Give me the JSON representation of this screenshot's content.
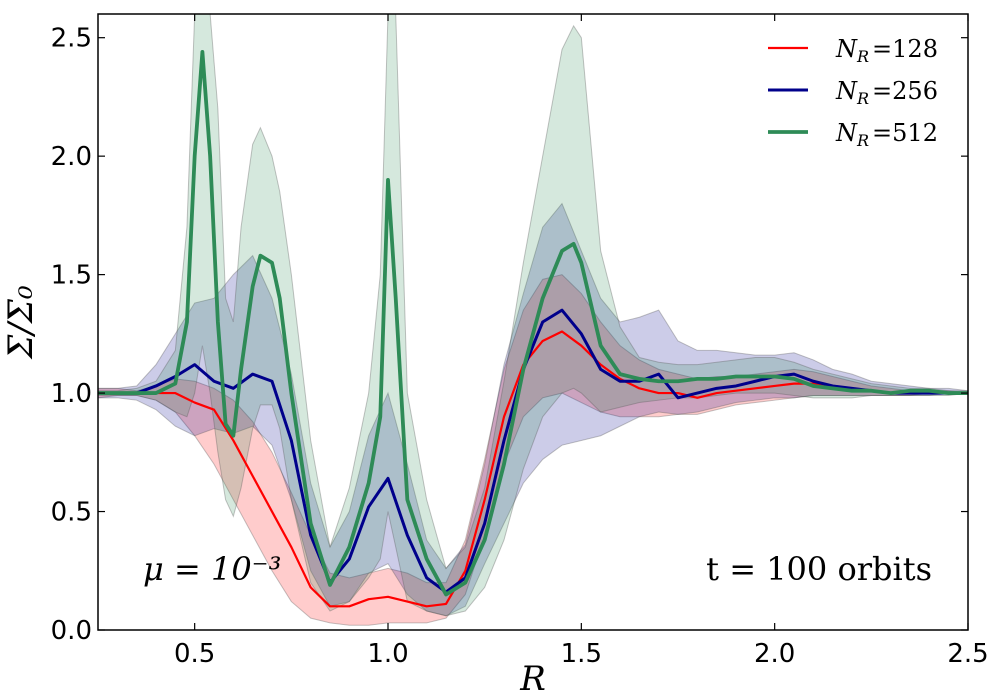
{
  "chart_data": {
    "type": "line",
    "title": "",
    "xlabel": "R",
    "ylabel": "Σ/Σ₀",
    "xlim": [
      0.25,
      2.5
    ],
    "ylim": [
      0.0,
      2.6
    ],
    "xticks": [
      "0.5",
      "1.0",
      "1.5",
      "2.0",
      "2.5"
    ],
    "yticks": [
      "0.0",
      "0.5",
      "1.0",
      "1.5",
      "2.0",
      "2.5"
    ],
    "legend_position": "top-right",
    "annotations": {
      "left": "μ = 10⁻³",
      "right": "t = 100 orbits"
    },
    "series": [
      {
        "name": "N_R =128",
        "legend_text": "N",
        "legend_sub": "R",
        "legend_value": "=128",
        "color": "#ff0000",
        "line_width": 2.2,
        "x": [
          0.25,
          0.3,
          0.35,
          0.4,
          0.45,
          0.5,
          0.55,
          0.6,
          0.65,
          0.7,
          0.75,
          0.8,
          0.85,
          0.9,
          0.95,
          1.0,
          1.05,
          1.1,
          1.15,
          1.2,
          1.25,
          1.3,
          1.35,
          1.4,
          1.45,
          1.5,
          1.55,
          1.6,
          1.65,
          1.7,
          1.75,
          1.8,
          1.85,
          1.9,
          1.95,
          2.0,
          2.05,
          2.1,
          2.15,
          2.2,
          2.25,
          2.3,
          2.35,
          2.4,
          2.45,
          2.5
        ],
        "y": [
          1.0,
          1.0,
          1.0,
          1.0,
          1.0,
          0.96,
          0.93,
          0.8,
          0.65,
          0.5,
          0.35,
          0.18,
          0.1,
          0.1,
          0.13,
          0.14,
          0.12,
          0.1,
          0.11,
          0.25,
          0.55,
          0.9,
          1.12,
          1.22,
          1.26,
          1.2,
          1.12,
          1.06,
          1.02,
          1.0,
          1.0,
          0.98,
          1.0,
          1.01,
          1.02,
          1.03,
          1.04,
          1.04,
          1.03,
          1.02,
          1.01,
          1.0,
          1.0,
          1.0,
          1.0,
          1.0
        ],
        "band_low": [
          0.98,
          0.99,
          0.99,
          0.97,
          0.92,
          0.82,
          0.7,
          0.55,
          0.4,
          0.25,
          0.12,
          0.05,
          0.03,
          0.02,
          0.02,
          0.03,
          0.03,
          0.03,
          0.05,
          0.15,
          0.4,
          0.7,
          0.9,
          0.98,
          1.0,
          0.96,
          0.92,
          0.9,
          0.9,
          0.9,
          0.91,
          0.91,
          0.93,
          0.95,
          0.96,
          0.97,
          0.98,
          0.99,
          0.99,
          0.99,
          0.99,
          0.99,
          0.99,
          1.0,
          1.0,
          1.0
        ],
        "band_high": [
          1.02,
          1.02,
          1.01,
          1.03,
          1.06,
          1.05,
          1.02,
          0.97,
          0.88,
          0.75,
          0.58,
          0.4,
          0.24,
          0.22,
          0.24,
          0.26,
          0.24,
          0.2,
          0.2,
          0.38,
          0.72,
          1.1,
          1.35,
          1.48,
          1.5,
          1.42,
          1.3,
          1.2,
          1.14,
          1.1,
          1.08,
          1.06,
          1.07,
          1.07,
          1.08,
          1.09,
          1.1,
          1.09,
          1.07,
          1.05,
          1.03,
          1.02,
          1.01,
          1.01,
          1.01,
          1.0
        ]
      },
      {
        "name": "N_R =256",
        "legend_text": "N",
        "legend_sub": "R",
        "legend_value": "=256",
        "color": "#00008b",
        "line_width": 3.0,
        "x": [
          0.25,
          0.3,
          0.35,
          0.4,
          0.45,
          0.5,
          0.55,
          0.6,
          0.65,
          0.7,
          0.75,
          0.8,
          0.85,
          0.9,
          0.95,
          1.0,
          1.05,
          1.1,
          1.15,
          1.2,
          1.25,
          1.3,
          1.35,
          1.4,
          1.45,
          1.5,
          1.55,
          1.6,
          1.65,
          1.7,
          1.75,
          1.8,
          1.85,
          1.9,
          1.95,
          2.0,
          2.05,
          2.1,
          2.15,
          2.2,
          2.25,
          2.3,
          2.35,
          2.4,
          2.45,
          2.5
        ],
        "y": [
          1.0,
          1.0,
          1.0,
          1.03,
          1.07,
          1.12,
          1.05,
          1.02,
          1.08,
          1.05,
          0.8,
          0.4,
          0.2,
          0.3,
          0.52,
          0.64,
          0.4,
          0.22,
          0.16,
          0.22,
          0.45,
          0.8,
          1.1,
          1.3,
          1.35,
          1.25,
          1.1,
          1.05,
          1.05,
          1.08,
          0.98,
          1.0,
          1.02,
          1.03,
          1.05,
          1.07,
          1.08,
          1.05,
          1.03,
          1.02,
          1.01,
          1.0,
          1.0,
          1.0,
          1.0,
          1.0
        ],
        "band_low": [
          0.98,
          0.98,
          0.97,
          0.93,
          0.86,
          0.82,
          0.85,
          0.83,
          0.86,
          0.78,
          0.55,
          0.25,
          0.1,
          0.12,
          0.24,
          0.28,
          0.15,
          0.08,
          0.06,
          0.1,
          0.28,
          0.45,
          0.62,
          0.72,
          0.78,
          0.8,
          0.82,
          0.86,
          0.9,
          0.92,
          0.91,
          0.92,
          0.94,
          0.96,
          0.97,
          0.98,
          0.98,
          0.99,
          0.99,
          0.99,
          0.99,
          0.99,
          0.99,
          0.99,
          1.0,
          1.0
        ],
        "band_high": [
          1.02,
          1.02,
          1.03,
          1.12,
          1.25,
          1.38,
          1.4,
          1.5,
          1.58,
          1.4,
          1.08,
          0.62,
          0.35,
          0.5,
          0.82,
          1.0,
          0.7,
          0.38,
          0.26,
          0.36,
          0.7,
          1.12,
          1.42,
          1.7,
          1.8,
          1.6,
          1.4,
          1.3,
          1.32,
          1.35,
          1.22,
          1.18,
          1.18,
          1.17,
          1.16,
          1.16,
          1.17,
          1.14,
          1.1,
          1.08,
          1.05,
          1.04,
          1.03,
          1.02,
          1.02,
          1.01
        ]
      },
      {
        "name": "N_R =512",
        "legend_text": "N",
        "legend_sub": "R",
        "legend_value": "=512",
        "color": "#2e8b57",
        "line_width": 3.8,
        "x": [
          0.25,
          0.3,
          0.35,
          0.4,
          0.45,
          0.48,
          0.5,
          0.52,
          0.54,
          0.56,
          0.58,
          0.6,
          0.62,
          0.65,
          0.67,
          0.7,
          0.72,
          0.75,
          0.8,
          0.85,
          0.9,
          0.95,
          0.98,
          1.0,
          1.02,
          1.05,
          1.1,
          1.15,
          1.2,
          1.25,
          1.3,
          1.35,
          1.4,
          1.45,
          1.48,
          1.5,
          1.55,
          1.6,
          1.65,
          1.7,
          1.75,
          1.8,
          1.85,
          1.9,
          1.95,
          2.0,
          2.05,
          2.1,
          2.15,
          2.2,
          2.25,
          2.3,
          2.35,
          2.4,
          2.45,
          2.5
        ],
        "y": [
          1.0,
          1.0,
          1.0,
          1.0,
          1.04,
          1.3,
          2.0,
          2.44,
          2.0,
          1.3,
          0.87,
          0.82,
          1.1,
          1.45,
          1.58,
          1.55,
          1.4,
          1.0,
          0.45,
          0.19,
          0.35,
          0.62,
          0.9,
          1.9,
          1.4,
          0.55,
          0.3,
          0.15,
          0.2,
          0.38,
          0.7,
          1.1,
          1.4,
          1.6,
          1.63,
          1.55,
          1.2,
          1.08,
          1.06,
          1.05,
          1.05,
          1.06,
          1.06,
          1.07,
          1.07,
          1.07,
          1.06,
          1.03,
          1.02,
          1.01,
          1.01,
          1.0,
          1.01,
          1.01,
          1.0,
          1.0
        ],
        "band_low": [
          0.99,
          0.99,
          0.99,
          0.97,
          0.92,
          0.9,
          1.0,
          1.2,
          1.0,
          0.75,
          0.55,
          0.48,
          0.6,
          0.85,
          0.95,
          0.95,
          0.85,
          0.55,
          0.2,
          0.08,
          0.12,
          0.22,
          0.3,
          0.5,
          0.35,
          0.12,
          0.08,
          0.06,
          0.08,
          0.18,
          0.38,
          0.68,
          0.9,
          1.0,
          1.02,
          1.0,
          0.92,
          0.94,
          0.96,
          0.97,
          0.98,
          0.98,
          0.99,
          1.0,
          1.0,
          1.0,
          0.99,
          0.98,
          0.98,
          0.98,
          0.99,
          0.99,
          0.99,
          0.99,
          0.99,
          1.0
        ],
        "band_high": [
          1.01,
          1.01,
          1.02,
          1.05,
          1.18,
          1.7,
          2.6,
          2.6,
          2.6,
          2.2,
          1.4,
          1.3,
          1.7,
          2.05,
          2.12,
          2.0,
          1.85,
          1.5,
          0.8,
          0.35,
          0.6,
          1.0,
          1.5,
          2.6,
          2.6,
          1.0,
          0.55,
          0.26,
          0.35,
          0.6,
          1.05,
          1.55,
          2.0,
          2.45,
          2.55,
          2.5,
          1.6,
          1.28,
          1.15,
          1.13,
          1.12,
          1.12,
          1.13,
          1.14,
          1.15,
          1.15,
          1.13,
          1.1,
          1.08,
          1.06,
          1.04,
          1.03,
          1.02,
          1.02,
          1.01,
          1.01
        ]
      }
    ]
  }
}
